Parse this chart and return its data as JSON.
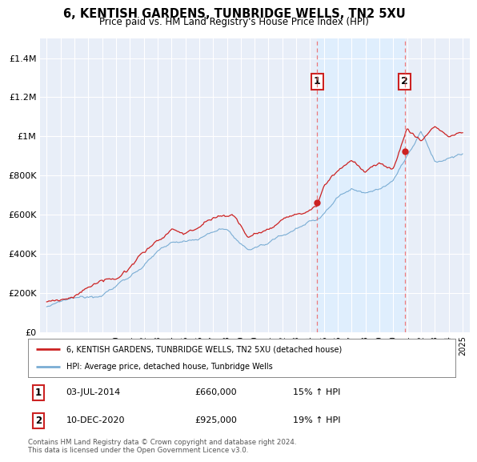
{
  "title": "6, KENTISH GARDENS, TUNBRIDGE WELLS, TN2 5XU",
  "subtitle": "Price paid vs. HM Land Registry's House Price Index (HPI)",
  "legend_line1": "6, KENTISH GARDENS, TUNBRIDGE WELLS, TN2 5XU (detached house)",
  "legend_line2": "HPI: Average price, detached house, Tunbridge Wells",
  "annotation1_label": "1",
  "annotation1_date": "03-JUL-2014",
  "annotation1_price": "£660,000",
  "annotation1_hpi": "15% ↑ HPI",
  "annotation2_label": "2",
  "annotation2_date": "10-DEC-2020",
  "annotation2_price": "£925,000",
  "annotation2_hpi": "19% ↑ HPI",
  "footer": "Contains HM Land Registry data © Crown copyright and database right 2024.\nThis data is licensed under the Open Government Licence v3.0.",
  "vline1_x": 2014.5,
  "vline2_x": 2020.83,
  "sale1_x": 2014.5,
  "sale1_y": 660000,
  "sale2_x": 2020.83,
  "sale2_y": 925000,
  "red_color": "#cc2222",
  "blue_color": "#7aadd4",
  "vline_color": "#ee6666",
  "shade_color": "#ddeeff",
  "background_color": "#e8eef8",
  "ylim": [
    0,
    1500000
  ],
  "xlim": [
    1994.5,
    2025.5
  ],
  "annotation_box_color": "#cc2222"
}
